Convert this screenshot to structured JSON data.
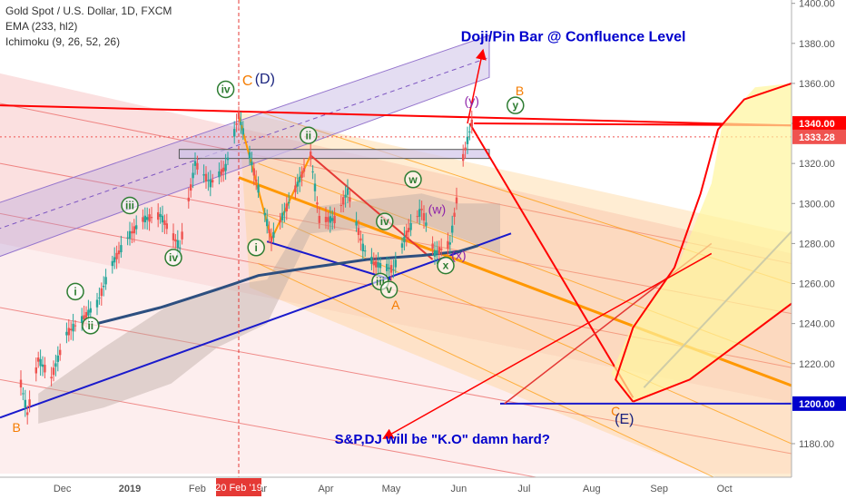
{
  "legend": {
    "symbol": "Gold Spot / U.S. Dollar, 1D, FXCM",
    "ema": "EMA (233, hl2)",
    "ichimoku": "Ichimoku (9, 26, 52, 26)"
  },
  "chart_data": {
    "type": "candlestick",
    "title": "Gold Spot / U.S. Dollar, 1D, FXCM",
    "ylim": [
      1165,
      1402
    ],
    "y_ticks": [
      1180,
      1200,
      1220,
      1240,
      1260,
      1280,
      1300,
      1320,
      1340,
      1360,
      1380,
      1400
    ],
    "y_tick_labels": [
      "1180.00",
      "1200.00",
      "1220.00",
      "1240.00",
      "1260.00",
      "1280.00",
      "1300.00",
      "1320.00",
      "1340.00",
      "1360.00",
      "1380.00",
      "1400.00"
    ],
    "x_ticks": [
      "Dec",
      "2019",
      "Feb",
      "Mar",
      "Apr",
      "May",
      "Jun",
      "Jul",
      "Aug",
      "Sep",
      "Oct"
    ],
    "x_tick_dates": [
      "2018-12-01",
      "2019-01-01",
      "2019-02-01",
      "2019-03-01",
      "2019-04-01",
      "2019-05-01",
      "2019-06-01",
      "2019-07-01",
      "2019-08-01",
      "2019-09-01",
      "2019-10-01"
    ],
    "price_labels": [
      {
        "value": 1340.0,
        "text": "1340.00",
        "color": "#ff0000"
      },
      {
        "value": 1333.28,
        "text": "1333.28",
        "color": "#ef5350"
      },
      {
        "value": 1200.0,
        "text": "1200.00",
        "color": "#0000cc"
      }
    ],
    "marked_date": {
      "date": "2019-02-20",
      "text": "20 Feb '19"
    },
    "price_path": [
      [
        "2018-11-12",
        1210
      ],
      [
        "2018-11-15",
        1195
      ],
      [
        "2018-11-20",
        1222
      ],
      [
        "2018-11-26",
        1213
      ],
      [
        "2018-12-03",
        1235
      ],
      [
        "2018-12-10",
        1242
      ],
      [
        "2018-12-17",
        1250
      ],
      [
        "2018-12-24",
        1270
      ],
      [
        "2018-12-31",
        1283
      ],
      [
        "2019-01-07",
        1292
      ],
      [
        "2019-01-15",
        1294
      ],
      [
        "2019-01-24",
        1278
      ],
      [
        "2019-01-31",
        1320
      ],
      [
        "2019-02-07",
        1310
      ],
      [
        "2019-02-14",
        1318
      ],
      [
        "2019-02-20",
        1344
      ],
      [
        "2019-02-26",
        1320
      ],
      [
        "2019-03-07",
        1282
      ],
      [
        "2019-03-14",
        1298
      ],
      [
        "2019-03-20",
        1312
      ],
      [
        "2019-03-25",
        1324
      ],
      [
        "2019-03-29",
        1292
      ],
      [
        "2019-04-05",
        1292
      ],
      [
        "2019-04-11",
        1306
      ],
      [
        "2019-04-18",
        1278
      ],
      [
        "2019-04-23",
        1270
      ],
      [
        "2019-05-02",
        1267
      ],
      [
        "2019-05-08",
        1285
      ],
      [
        "2019-05-15",
        1297
      ],
      [
        "2019-05-21",
        1275
      ],
      [
        "2019-05-28",
        1280
      ],
      [
        "2019-06-03",
        1323
      ],
      [
        "2019-06-07",
        1340
      ],
      [
        "2019-06-10",
        1333
      ]
    ],
    "ema_path": [
      [
        "2018-12-17",
        1240
      ],
      [
        "2019-01-15",
        1248
      ],
      [
        "2019-02-10",
        1257
      ],
      [
        "2019-03-01",
        1264
      ],
      [
        "2019-03-25",
        1268
      ],
      [
        "2019-04-20",
        1272
      ],
      [
        "2019-05-15",
        1274
      ],
      [
        "2019-06-01",
        1276
      ],
      [
        "2019-06-10",
        1279
      ]
    ],
    "annotations": [
      {
        "text": "Doji/Pin Bar @ Confluence Level",
        "color": "#0000cc"
      },
      {
        "text": "S&P,DJ will be \"K.O\" damn hard?",
        "color": "#0000cc"
      },
      {
        "text": "iv",
        "color": "#2e7d32",
        "style": "circled"
      },
      {
        "text": "C",
        "color": "#f57c00"
      },
      {
        "text": "(D)",
        "color": "#1a237e"
      },
      {
        "text": "ii",
        "color": "#2e7d32",
        "style": "circled"
      },
      {
        "text": "iii",
        "color": "#2e7d32",
        "style": "circled"
      },
      {
        "text": "i",
        "color": "#2e7d32",
        "style": "circled"
      },
      {
        "text": "ii",
        "color": "#2e7d32",
        "style": "circled"
      },
      {
        "text": "iv",
        "color": "#2e7d32",
        "style": "circled"
      },
      {
        "text": "i",
        "color": "#2e7d32",
        "style": "circled"
      },
      {
        "text": "w",
        "color": "#2e7d32",
        "style": "circled"
      },
      {
        "text": "iv",
        "color": "#2e7d32",
        "style": "circled"
      },
      {
        "text": "(w)",
        "color": "#8e24aa"
      },
      {
        "text": "iii",
        "color": "#2e7d32",
        "style": "circled"
      },
      {
        "text": "v",
        "color": "#2e7d32",
        "style": "circled"
      },
      {
        "text": "A",
        "color": "#f57c00"
      },
      {
        "text": "x",
        "color": "#2e7d32",
        "style": "circled"
      },
      {
        "text": "(x)",
        "color": "#8e24aa"
      },
      {
        "text": "(y)",
        "color": "#8e24aa"
      },
      {
        "text": "y",
        "color": "#2e7d32",
        "style": "circled"
      },
      {
        "text": "B",
        "color": "#f57c00"
      },
      {
        "text": "B",
        "color": "#f57c00"
      },
      {
        "text": "C",
        "color": "#f57c00"
      },
      {
        "text": "(E)",
        "color": "#1a237e"
      }
    ]
  }
}
